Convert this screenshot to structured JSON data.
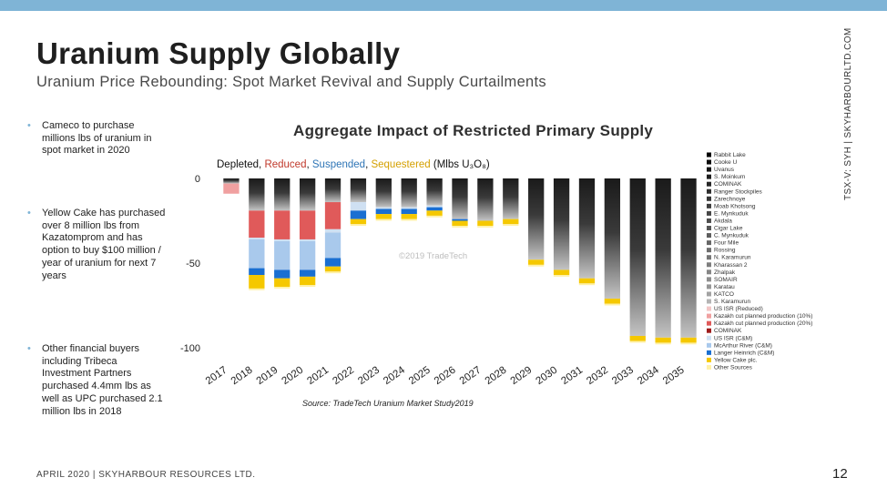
{
  "header": {
    "title": "Uranium Supply Globally",
    "subtitle": "Uranium Price Rebounding: Spot Market Revival and Supply Curtailments",
    "side_tag": "TSX-V: SYH  |  SKYHARBOURLTD.COM"
  },
  "bullets": [
    {
      "text": "Cameco to purchase millions lbs of uranium in spot market in 2020"
    },
    {
      "text": "Yellow Cake has purchased over 8 million lbs from Kazatomprom and has option to buy $100 million / year of uranium for next 7 years"
    },
    {
      "text": "Other financial buyers including Tribeca Investment Partners purchased 4.4mm lbs as well as UPC purchased 2.1 million lbs in 2018"
    }
  ],
  "chart": {
    "title": "Aggregate Impact of Restricted Primary Supply",
    "header_parts": [
      {
        "text": "Depleted",
        "color": "#111111"
      },
      {
        "text": ", ",
        "color": "#111111"
      },
      {
        "text": "Reduced",
        "color": "#c0392b"
      },
      {
        "text": ", ",
        "color": "#111111"
      },
      {
        "text": "Suspended",
        "color": "#2e75b6"
      },
      {
        "text": ", ",
        "color": "#111111"
      },
      {
        "text": "Sequestered",
        "color": "#d4a000"
      },
      {
        "text": " (Mlbs U₃O₈)",
        "color": "#111111"
      }
    ],
    "watermark": "©2019 TradeTech",
    "source": "Source: TradeTech Uranium Market Study2019"
  },
  "footer": {
    "left": "APRIL 2020  |  SKYHARBOUR RESOURCES LTD.",
    "page": "12"
  },
  "chart_data": {
    "type": "bar",
    "stacked": true,
    "categories": [
      "2017",
      "2018",
      "2019",
      "2020",
      "2021",
      "2022",
      "2023",
      "2024",
      "2025",
      "2026",
      "2027",
      "2028",
      "2029",
      "2030",
      "2031",
      "2032",
      "2033",
      "2034",
      "2035"
    ],
    "ylim": [
      -100,
      0
    ],
    "yticks": [
      0,
      -50,
      -100
    ],
    "legend_position": "right",
    "series": [
      {
        "group": "depleted",
        "color": "#2c2c2c",
        "values": [
          -3,
          -19,
          -19,
          -19,
          -14,
          -14,
          -17,
          -17,
          -16,
          -24,
          -25,
          -24,
          -48,
          -54,
          -59,
          -71,
          -93,
          -94,
          -94
        ]
      },
      {
        "group": "depleted",
        "color": "#bcbcbc",
        "values": [
          0,
          0,
          0,
          0,
          0,
          0,
          0,
          0,
          0,
          0,
          0,
          0,
          0,
          0,
          0,
          0,
          0,
          0,
          0
        ]
      },
      {
        "name": "US ISR (Reduced)",
        "color": "#f2c6c6",
        "values": [
          0,
          0,
          0,
          0,
          0,
          0,
          0,
          0,
          0,
          0,
          0,
          0,
          0,
          0,
          0,
          0,
          0,
          0,
          0
        ]
      },
      {
        "name": "Kazakh cut planned production (10%)",
        "color": "#f0a0a0",
        "values": [
          -6,
          0,
          0,
          0,
          0,
          0,
          0,
          0,
          0,
          0,
          0,
          0,
          0,
          0,
          0,
          0,
          0,
          0,
          0
        ]
      },
      {
        "name": "Kazakh cut planned production (20%)",
        "color": "#e05a5a",
        "values": [
          0,
          -16,
          -17,
          -17,
          -16,
          0,
          0,
          0,
          0,
          0,
          0,
          0,
          0,
          0,
          0,
          0,
          0,
          0,
          0
        ]
      },
      {
        "name": "COMINAK",
        "color": "#9e1b1b",
        "values": [
          0,
          0,
          0,
          0,
          0,
          0,
          0,
          0,
          0,
          0,
          0,
          0,
          0,
          0,
          0,
          0,
          0,
          0,
          0
        ]
      },
      {
        "name": "US ISR (C&M)",
        "color": "#cfe0f2",
        "values": [
          0,
          -1,
          -1,
          -1,
          -2,
          -5,
          -1,
          -1,
          -1,
          0,
          0,
          0,
          0,
          0,
          0,
          0,
          0,
          0,
          0
        ]
      },
      {
        "name": "McArthur River (C&M)",
        "color": "#a9c9ec",
        "values": [
          0,
          -17,
          -17,
          -17,
          -15,
          0,
          0,
          0,
          0,
          0,
          0,
          0,
          0,
          0,
          0,
          0,
          0,
          0,
          0
        ]
      },
      {
        "name": "Langer Heinrich (C&M)",
        "color": "#1a6fd1",
        "values": [
          0,
          -4,
          -5,
          -4,
          -5,
          -5,
          -3,
          -3,
          -2,
          -1,
          0,
          0,
          0,
          0,
          0,
          0,
          0,
          0,
          0
        ]
      },
      {
        "name": "Yellow Cake plc.",
        "color": "#f5c800",
        "values": [
          0,
          -8,
          -5,
          -5,
          -3,
          -3,
          -3,
          -3,
          -3,
          -3,
          -3,
          -3,
          -3,
          -3,
          -3,
          -3,
          -3,
          -3,
          -3
        ]
      },
      {
        "name": "Other Sources",
        "color": "#fff1a8",
        "values": [
          0,
          -1,
          -1,
          -1,
          -1,
          -1,
          -1,
          -1,
          -1,
          -1,
          -1,
          -1,
          -1,
          -1,
          -1,
          -1,
          -1,
          -1,
          -1
        ]
      }
    ],
    "legend": [
      {
        "label": "Rabbit Lake",
        "color": "#000000"
      },
      {
        "label": "Cooke U",
        "color": "#0a0a0a"
      },
      {
        "label": "Uvanus",
        "color": "#141414"
      },
      {
        "label": "S. Moinkum",
        "color": "#1e1e1e"
      },
      {
        "label": "COMINAK",
        "color": "#262626"
      },
      {
        "label": "Ranger Stockpiles",
        "color": "#2e2e2e"
      },
      {
        "label": "Zarechnoye",
        "color": "#363636"
      },
      {
        "label": "Moab Khotsong",
        "color": "#3e3e3e"
      },
      {
        "label": "E. Mynkuduk",
        "color": "#464646"
      },
      {
        "label": "Akdala",
        "color": "#4e4e4e"
      },
      {
        "label": "Cigar Lake",
        "color": "#565656"
      },
      {
        "label": "C. Mynkuduk",
        "color": "#5e5e5e"
      },
      {
        "label": "Four Mile",
        "color": "#666666"
      },
      {
        "label": "Rossing",
        "color": "#6e6e6e"
      },
      {
        "label": "N. Karamurun",
        "color": "#767676"
      },
      {
        "label": "Kharassan 2",
        "color": "#7e7e7e"
      },
      {
        "label": "Zhalpak",
        "color": "#868686"
      },
      {
        "label": "SOMAIR",
        "color": "#8e8e8e"
      },
      {
        "label": "Karatau",
        "color": "#969696"
      },
      {
        "label": "KATCO",
        "color": "#a2a2a2"
      },
      {
        "label": "S. Karamurun",
        "color": "#b4b4b4"
      },
      {
        "label": "US ISR (Reduced)",
        "color": "#f2c6c6"
      },
      {
        "label": "Kazakh cut planned production (10%)",
        "color": "#f0a0a0"
      },
      {
        "label": "Kazakh cut planned production (20%)",
        "color": "#e05a5a"
      },
      {
        "label": "COMINAK",
        "color": "#9e1b1b"
      },
      {
        "label": "US ISR (C&M)",
        "color": "#cfe0f2"
      },
      {
        "label": "McArthur River (C&M)",
        "color": "#a9c9ec"
      },
      {
        "label": "Langer Heinrich (C&M)",
        "color": "#1a6fd1"
      },
      {
        "label": "Yellow Cake plc.",
        "color": "#f5c800"
      },
      {
        "label": "Other Sources",
        "color": "#fff1a8"
      }
    ]
  }
}
